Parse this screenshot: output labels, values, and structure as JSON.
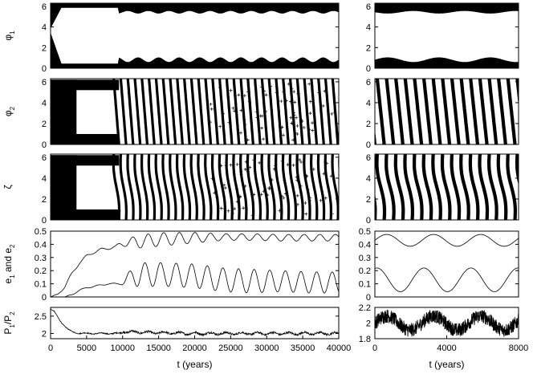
{
  "colors": {
    "ink": "#000000",
    "background": "#ffffff"
  },
  "chart_data": [
    {
      "type": "scatter",
      "panel": "phi1-long",
      "ylabel_base": "φ",
      "ylabel_sub": "1",
      "xlim": [
        0,
        40000
      ],
      "ylim": [
        0,
        6.3
      ],
      "yticks": [
        "0",
        "2",
        "4",
        "6"
      ],
      "xticks": [],
      "grid": false,
      "series": [
        {
          "values": "dense scatter of the resonant angle; libration about π until t≈9500 (band edges near 0.5 and 5.8), then oscillating band edges near 0.7–1.5 and 5.0–5.8"
        }
      ]
    },
    {
      "type": "scatter",
      "panel": "phi1-short",
      "xlim": [
        0,
        8000
      ],
      "ylim": [
        0,
        6.3
      ],
      "yticks": [
        "0",
        "2",
        "4",
        "6"
      ],
      "xticks": [],
      "grid": false,
      "series": [
        {
          "values": "oscillating band edges near 0.4–1.2 and 5.2–6.0 with white interior"
        }
      ]
    },
    {
      "type": "scatter",
      "panel": "phi2-long",
      "ylabel_base": "φ",
      "ylabel_sub": "2",
      "xlim": [
        0,
        40000
      ],
      "ylim": [
        0,
        6.3
      ],
      "yticks": [
        "0",
        "2",
        "4",
        "6"
      ],
      "xticks": [],
      "grid": false,
      "series": [
        {
          "values": "circulation; diagonal stripes with sparse scatter"
        }
      ]
    },
    {
      "type": "scatter",
      "panel": "phi2-short",
      "xlim": [
        0,
        8000
      ],
      "ylim": [
        0,
        6.3
      ],
      "yticks": [
        "0",
        "2",
        "4",
        "6"
      ],
      "xticks": [],
      "grid": false,
      "series": [
        {
          "values": "circulation; dense diagonal stripes"
        }
      ]
    },
    {
      "type": "scatter",
      "panel": "zeta-long",
      "ylabel_base": "ζ",
      "ylabel_sub": "",
      "xlim": [
        0,
        40000
      ],
      "ylim": [
        0,
        6.3
      ],
      "yticks": [
        "0",
        "2",
        "4",
        "6"
      ],
      "xticks": [],
      "grid": false,
      "series": [
        {
          "values": "circulation; S-shaped stripes with sparse scatter"
        }
      ]
    },
    {
      "type": "scatter",
      "panel": "zeta-short",
      "xlim": [
        0,
        8000
      ],
      "ylim": [
        0,
        6.3
      ],
      "yticks": [
        "0",
        "2",
        "4",
        "6"
      ],
      "xticks": [],
      "grid": false,
      "series": [
        {
          "values": "circulation; S-shaped stripes"
        }
      ]
    },
    {
      "type": "line",
      "panel": "ecc-long",
      "ylabel_base": "e",
      "ylabel_sub": "1",
      "ylabel_mid": " and e",
      "ylabel_sub2": "2",
      "xlim": [
        0,
        40000
      ],
      "ylim": [
        0,
        0.5
      ],
      "yticks": [
        "0",
        "0.1",
        "0.2",
        "0.3",
        "0.4",
        "0.5"
      ],
      "xticks": [],
      "grid": false,
      "series": [
        {
          "x": [
            0,
            1000,
            2000,
            3000,
            4000,
            5000,
            6000,
            7000,
            8000,
            9000,
            9500,
            12000,
            16000,
            20000,
            24000,
            28000,
            32000,
            36000,
            40000
          ],
          "values": [
            0.0,
            0.02,
            0.08,
            0.18,
            0.26,
            0.31,
            0.34,
            0.36,
            0.37,
            0.38,
            0.4,
            0.42,
            0.44,
            0.45,
            0.455,
            0.455,
            0.45,
            0.45,
            0.45
          ],
          "amplitude": [
            0,
            0.005,
            0.01,
            0.01,
            0.01,
            0.01,
            0.01,
            0.01,
            0.01,
            0.01,
            0.01,
            0.05,
            0.05,
            0.04,
            0.025,
            0.025,
            0.025,
            0.025,
            0.025
          ]
        },
        {
          "x": [
            0,
            1000,
            2000,
            3000,
            4000,
            5000,
            6000,
            7000,
            8000,
            9000,
            9500,
            12000,
            16000,
            20000,
            24000,
            28000,
            32000,
            36000,
            40000
          ],
          "values": [
            0.0,
            0.0,
            0.0,
            0.02,
            0.05,
            0.07,
            0.08,
            0.09,
            0.1,
            0.1,
            0.1,
            0.17,
            0.17,
            0.16,
            0.13,
            0.12,
            0.12,
            0.11,
            0.11
          ],
          "amplitude": [
            0,
            0,
            0,
            0.005,
            0.005,
            0.005,
            0.005,
            0.005,
            0.005,
            0.005,
            0.005,
            0.09,
            0.09,
            0.09,
            0.09,
            0.09,
            0.08,
            0.08,
            0.08
          ]
        }
      ]
    },
    {
      "type": "line",
      "panel": "ecc-short",
      "xlim": [
        0,
        8000
      ],
      "ylim": [
        0,
        0.5
      ],
      "yticks": [
        "0",
        "0.1",
        "0.2",
        "0.3",
        "0.4",
        "0.5"
      ],
      "xticks": [],
      "grid": false,
      "series": [
        {
          "x": [
            0,
            8000
          ],
          "values": [
            0.43,
            0.43
          ],
          "amplitude": [
            0.045,
            0.045
          ]
        },
        {
          "x": [
            0,
            8000
          ],
          "values": [
            0.13,
            0.13
          ],
          "amplitude": [
            0.09,
            0.09
          ]
        }
      ]
    },
    {
      "type": "line",
      "panel": "period-long",
      "ylabel_base": "P",
      "ylabel_sub": "1",
      "ylabel_mid": "/P",
      "ylabel_sub2": "2",
      "xlim": [
        0,
        40000
      ],
      "ylim": [
        1.85,
        2.75
      ],
      "yticks": [
        "2",
        "2.5"
      ],
      "xlabel": "t (years)",
      "xticks": [
        "0",
        "5000",
        "10000",
        "15000",
        "20000",
        "25000",
        "30000",
        "35000",
        "40000"
      ],
      "grid": false,
      "series": [
        {
          "x": [
            0,
            500,
            1000,
            1500,
            2000,
            2500,
            3000,
            3500,
            4000,
            5000,
            8000,
            9500,
            10000,
            15000,
            20000,
            25000,
            30000,
            35000,
            40000
          ],
          "values": [
            2.7,
            2.63,
            2.47,
            2.32,
            2.2,
            2.11,
            2.05,
            2.02,
            2.01,
            2.0,
            2.0,
            2.0,
            2.05,
            2.02,
            2.0,
            2.0,
            2.0,
            2.0,
            2.0
          ],
          "amplitude": [
            0,
            0.01,
            0.01,
            0.01,
            0.01,
            0.01,
            0.01,
            0.01,
            0.015,
            0.015,
            0.015,
            0.02,
            0.03,
            0.03,
            0.03,
            0.03,
            0.03,
            0.03,
            0.03
          ]
        }
      ]
    },
    {
      "type": "line",
      "panel": "period-short",
      "xlim": [
        0,
        8000
      ],
      "ylim": [
        1.8,
        2.2
      ],
      "yticks": [
        "1.8",
        "2",
        "2.2"
      ],
      "xlabel": "t (years)",
      "xticks": [
        "0",
        "4000",
        "8000"
      ],
      "grid": false,
      "series": [
        {
          "x": [
            0,
            8000
          ],
          "values": [
            2.0,
            2.0
          ],
          "amplitude": [
            0.09,
            0.09
          ]
        }
      ]
    }
  ]
}
